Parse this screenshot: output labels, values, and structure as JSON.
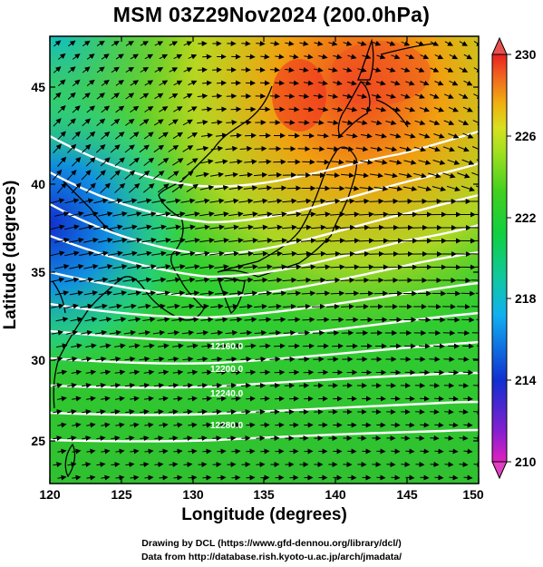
{
  "title": "MSM 03Z29Nov2024 (200.0hPa)",
  "axes": {
    "xlabel": "Longitude (degrees)",
    "ylabel": "Latitude  (degrees)",
    "x_ticks": [
      "120",
      "125",
      "130",
      "135",
      "140",
      "145",
      "150"
    ],
    "y_ticks": [
      "25",
      "30",
      "35",
      "40",
      "45"
    ],
    "x_range": [
      120,
      150
    ],
    "y_range": [
      22.4,
      47.6
    ]
  },
  "colorbar": {
    "ticks": [
      "230",
      "226",
      "222",
      "218",
      "214",
      "210"
    ],
    "range": [
      210,
      230
    ],
    "colors": [
      "#e020c0",
      "#8020d0",
      "#1030d0",
      "#10b0f0",
      "#10c8a0",
      "#10d040",
      "#40d020",
      "#a0e020",
      "#d8e020",
      "#f0b010",
      "#f06020",
      "#e82020"
    ]
  },
  "contour_labels": [
    "12160.0",
    "12200.0",
    "12240.0",
    "12280.0"
  ],
  "credits": {
    "line1": "Drawing by DCL (https://www.gfd-dennou.org/library/dcl/)",
    "line2": "Data from http://database.rish.kyoto-u.ac.jp/arch/jmadata/"
  },
  "chart_data": {
    "type": "heatmap",
    "variable": "temperature-shaded field with wind vectors and geopotential height contours",
    "colorbar_range": [
      210,
      230
    ],
    "x_range": [
      120,
      150
    ],
    "y_range": [
      22.4,
      47.6
    ],
    "contour_labels": [
      12160.0,
      12200.0,
      12240.0,
      12280.0
    ],
    "legend_placement": "right"
  }
}
